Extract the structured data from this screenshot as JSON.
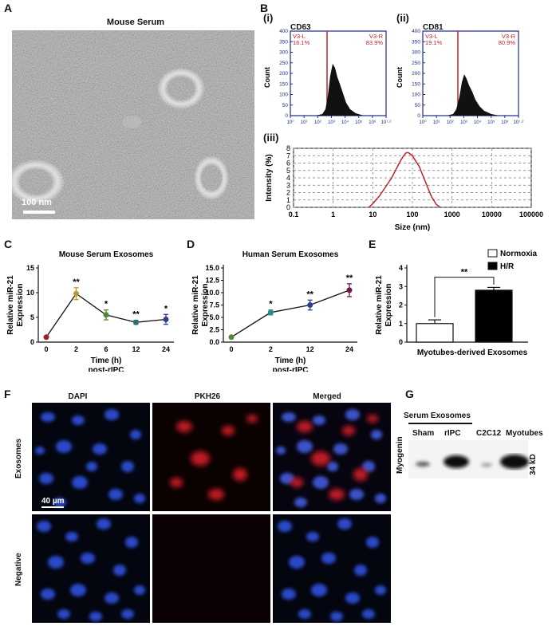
{
  "panels": {
    "A": {
      "label": "A",
      "title": "Mouse Serum",
      "scalebar": "100 nm"
    },
    "B": {
      "label": "B",
      "i": {
        "label": "(i)",
        "marker": "CD63",
        "left": "V3-L",
        "left_pct": "16.1%",
        "right": "V3-R",
        "right_pct": "83.9%",
        "ylabel": "Count",
        "yticks": [
          "0",
          "50",
          "100",
          "150",
          "200",
          "250",
          "300",
          "350",
          "400"
        ]
      },
      "ii": {
        "label": "(ii)",
        "marker": "CD81",
        "left": "V3-L",
        "left_pct": "19.1%",
        "right": "V3-R",
        "right_pct": "80.9%",
        "ylabel": "Count",
        "yticks": [
          "0",
          "50",
          "100",
          "150",
          "200",
          "250",
          "300",
          "350",
          "400"
        ]
      },
      "xticks": [
        "10⁰",
        "10¹",
        "10²",
        "10³",
        "10⁴",
        "10⁵",
        "10⁶",
        "10⁷·²"
      ],
      "iii": {
        "label": "(iii)"
      }
    },
    "C": {
      "label": "C"
    },
    "D": {
      "label": "D"
    },
    "E": {
      "label": "E"
    },
    "F": {
      "label": "F",
      "cols": [
        "DAPI",
        "PKH26",
        "Merged"
      ],
      "rows": [
        "Exosomes",
        "Negative"
      ],
      "scale": "40 µm"
    },
    "G": {
      "label": "G",
      "group": "Serum Exosomes",
      "lanes": [
        "Sham",
        "rIPC",
        "C2C12",
        "Myotubes"
      ],
      "row": "Myogenin",
      "size": "34 kD"
    }
  },
  "chart_data": [
    {
      "type": "line",
      "id": "B-iii",
      "title": "",
      "xlabel": "Size (nm)",
      "ylabel": "Intensity (%)",
      "xscale": "log",
      "xlim": [
        0.1,
        100000
      ],
      "ylim": [
        0,
        8
      ],
      "xticks": [
        "0.1",
        "1",
        "10",
        "100",
        "1000",
        "10000",
        "100000"
      ],
      "yticks": [
        "0",
        "1",
        "2",
        "3",
        "4",
        "5",
        "6",
        "7",
        "8"
      ],
      "grid": true,
      "x": [
        8,
        10,
        15,
        20,
        30,
        40,
        50,
        60,
        70,
        80,
        100,
        150,
        200,
        300,
        400,
        500
      ],
      "y": [
        0,
        0.5,
        1.6,
        2.6,
        4.0,
        5.3,
        6.3,
        7.0,
        7.4,
        7.4,
        7.0,
        5.5,
        3.8,
        1.5,
        0.4,
        0
      ]
    },
    {
      "type": "line",
      "id": "C",
      "title": "Mouse Serum Exosomes",
      "xlabel": "Time (h)",
      "xlabel2": "post-rIPC",
      "ylabel": "Relative miR-21 Expression",
      "categories": [
        "0",
        "2",
        "6",
        "12",
        "24"
      ],
      "values": [
        1,
        9.8,
        5.5,
        4.0,
        4.6
      ],
      "errors": [
        0,
        1.2,
        1.0,
        0.4,
        1.0
      ],
      "sig": [
        "",
        "**",
        "*",
        "**",
        "*"
      ],
      "ylim": [
        0,
        15
      ],
      "yticks": [
        "0",
        "5",
        "10",
        "15"
      ],
      "colors": [
        "#a01f1f",
        "#b59a2a",
        "#4f8a2a",
        "#2b6e74",
        "#2a3f8f"
      ]
    },
    {
      "type": "line",
      "id": "D",
      "title": "Human Serum Exosomes",
      "xlabel": "Time (h)",
      "xlabel2": "post-rIPC",
      "ylabel": "Relative miR-21 Expression",
      "categories": [
        "0",
        "2",
        "12",
        "24"
      ],
      "values": [
        1,
        6.0,
        7.5,
        10.5
      ],
      "errors": [
        0,
        0.5,
        1.0,
        1.3
      ],
      "sig": [
        "",
        "*",
        "**",
        "**"
      ],
      "ylim": [
        0,
        15
      ],
      "yticks": [
        "0.0",
        "2.5",
        "5.0",
        "7.5",
        "10.0",
        "12.5",
        "15.0"
      ],
      "colors": [
        "#4f8a2a",
        "#2b8a8a",
        "#2a3f8f",
        "#6b1a4a"
      ]
    },
    {
      "type": "bar",
      "id": "E",
      "title": "",
      "xlabel": "Myotubes-derived Exosomes",
      "ylabel": "Relative miR-21 Expression",
      "series": [
        {
          "name": "Normoxia",
          "values": [
            1.0
          ],
          "error": 0.2
        },
        {
          "name": "H/R",
          "values": [
            2.8
          ],
          "error": 0.15
        }
      ],
      "sig": "**",
      "ylim": [
        0,
        4
      ],
      "yticks": [
        "0",
        "1",
        "2",
        "3",
        "4"
      ]
    }
  ]
}
